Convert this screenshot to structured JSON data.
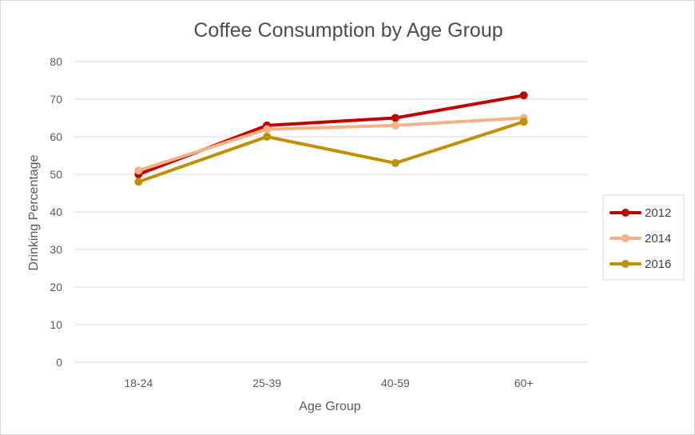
{
  "chart_data": {
    "type": "line",
    "title": "Coffee Consumption by Age Group",
    "xlabel": "Age Group",
    "ylabel": "Drinking Percentage",
    "categories": [
      "18-24",
      "25-39",
      "40-59",
      "60+"
    ],
    "ylim": [
      0,
      80
    ],
    "yticks": [
      0,
      10,
      20,
      30,
      40,
      50,
      60,
      70,
      80
    ],
    "grid": true,
    "legend_position": "right",
    "series": [
      {
        "name": "2012",
        "color": "#c00000",
        "values": [
          50,
          63,
          65,
          71
        ]
      },
      {
        "name": "2014",
        "color": "#f4b183",
        "values": [
          51,
          62,
          63,
          65
        ]
      },
      {
        "name": "2016",
        "color": "#bf9000",
        "values": [
          48,
          60,
          53,
          64
        ]
      }
    ]
  }
}
